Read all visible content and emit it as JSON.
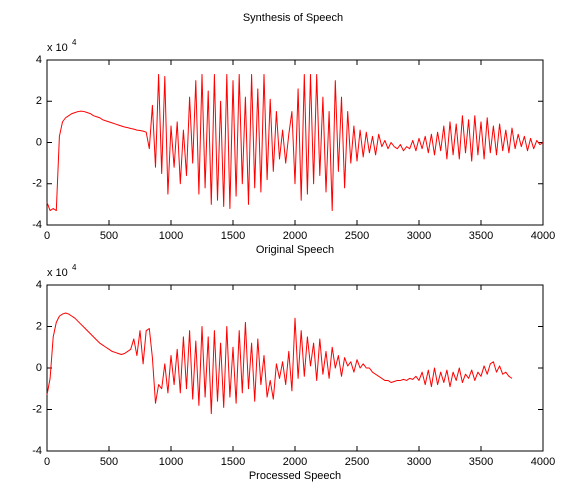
{
  "title": "Synthesis of Speech",
  "chart_data": [
    {
      "type": "line",
      "xlabel": "Original Speech",
      "multiplier_base": "x 10",
      "multiplier_exponent": "4",
      "color": "#ff0000",
      "xlim": [
        0,
        4000
      ],
      "ylim": [
        -4,
        4
      ],
      "xticks": [
        0,
        500,
        1000,
        1500,
        2000,
        2500,
        3000,
        3500,
        4000
      ],
      "yticks": [
        -4,
        -2,
        0,
        2,
        4
      ],
      "x": [
        0,
        25,
        50,
        75,
        100,
        125,
        150,
        175,
        200,
        225,
        250,
        275,
        300,
        325,
        350,
        375,
        400,
        425,
        450,
        475,
        500,
        525,
        550,
        575,
        600,
        625,
        650,
        675,
        700,
        725,
        750,
        775,
        800,
        825,
        850,
        875,
        900,
        925,
        950,
        975,
        1000,
        1025,
        1050,
        1075,
        1100,
        1125,
        1150,
        1175,
        1200,
        1225,
        1250,
        1275,
        1300,
        1325,
        1350,
        1375,
        1400,
        1425,
        1450,
        1475,
        1500,
        1525,
        1550,
        1575,
        1600,
        1625,
        1650,
        1675,
        1700,
        1725,
        1750,
        1775,
        1800,
        1825,
        1850,
        1875,
        1900,
        1925,
        1950,
        1975,
        2000,
        2025,
        2050,
        2075,
        2100,
        2125,
        2150,
        2175,
        2200,
        2225,
        2250,
        2275,
        2300,
        2325,
        2350,
        2375,
        2400,
        2425,
        2450,
        2475,
        2500,
        2525,
        2550,
        2575,
        2600,
        2625,
        2650,
        2675,
        2700,
        2725,
        2750,
        2775,
        2800,
        2825,
        2850,
        2875,
        2900,
        2925,
        2950,
        2975,
        3000,
        3025,
        3050,
        3075,
        3100,
        3125,
        3150,
        3175,
        3200,
        3225,
        3250,
        3275,
        3300,
        3325,
        3350,
        3375,
        3400,
        3425,
        3450,
        3475,
        3500,
        3525,
        3550,
        3575,
        3600,
        3625,
        3650,
        3675,
        3700,
        3725,
        3750,
        3775,
        3800,
        3825,
        3850,
        3875,
        3900,
        3925,
        3950,
        3975,
        4000
      ],
      "values": [
        -2.9,
        -3.3,
        -3.2,
        -3.3,
        0.3,
        1.0,
        1.2,
        1.3,
        1.4,
        1.45,
        1.5,
        1.52,
        1.5,
        1.45,
        1.4,
        1.3,
        1.25,
        1.2,
        1.1,
        1.05,
        1.0,
        0.95,
        0.9,
        0.85,
        0.8,
        0.75,
        0.72,
        0.68,
        0.65,
        0.6,
        0.58,
        0.55,
        0.5,
        -0.3,
        1.8,
        -1.2,
        3.3,
        -1.5,
        3.2,
        -2.5,
        0.8,
        -1.2,
        1.0,
        -2.0,
        0.6,
        -1.6,
        2.2,
        -1.0,
        3.0,
        -2.5,
        3.3,
        -2.2,
        2.5,
        -3.0,
        3.3,
        -2.8,
        2.0,
        -3.1,
        3.3,
        -3.2,
        3.0,
        -2.6,
        3.3,
        -2.0,
        2.2,
        -3.0,
        3.3,
        -2.2,
        2.6,
        -2.4,
        3.3,
        -1.8,
        2.1,
        -1.4,
        1.5,
        -0.8,
        0.6,
        -1.0,
        0.4,
        1.5,
        -2.0,
        2.6,
        -2.8,
        3.3,
        -2.5,
        3.3,
        -2.0,
        3.3,
        -1.6,
        2.2,
        -2.4,
        1.5,
        -3.3,
        3.0,
        -1.4,
        2.2,
        -2.2,
        1.5,
        -1.0,
        0.8,
        -0.9,
        0.6,
        -0.7,
        0.5,
        -0.5,
        0.3,
        -0.6,
        0.4,
        -0.2,
        0.1,
        -0.3,
        0.0,
        -0.2,
        -0.3,
        -0.1,
        -0.4,
        -0.2,
        -0.3,
        0.1,
        -0.4,
        0.2,
        -0.3,
        0.3,
        -0.5,
        0.4,
        -0.6,
        0.5,
        -0.4,
        0.8,
        -0.8,
        1.0,
        -0.6,
        0.9,
        -0.8,
        1.3,
        -0.5,
        1.1,
        -0.9,
        1.3,
        -0.6,
        1.0,
        -0.8,
        1.2,
        -0.5,
        0.8,
        -0.6,
        0.9,
        -0.4,
        0.6,
        -0.5,
        0.7,
        -0.3,
        0.4,
        -0.2,
        0.3,
        -0.4,
        0.2,
        -0.3,
        0.1,
        -0.1,
        0.0
      ]
    },
    {
      "type": "line",
      "xlabel": "Processed Speech",
      "multiplier_base": "x 10",
      "multiplier_exponent": "4",
      "color": "#ff0000",
      "xlim": [
        0,
        4000
      ],
      "ylim": [
        -4,
        4
      ],
      "xticks": [
        0,
        500,
        1000,
        1500,
        2000,
        2500,
        3000,
        3500,
        4000
      ],
      "yticks": [
        -4,
        -2,
        0,
        2,
        4
      ],
      "x": [
        0,
        25,
        50,
        75,
        100,
        125,
        150,
        175,
        200,
        225,
        250,
        275,
        300,
        325,
        350,
        375,
        400,
        425,
        450,
        475,
        500,
        525,
        550,
        575,
        600,
        625,
        650,
        675,
        700,
        725,
        750,
        775,
        800,
        825,
        850,
        875,
        900,
        925,
        950,
        975,
        1000,
        1025,
        1050,
        1075,
        1100,
        1125,
        1150,
        1175,
        1200,
        1225,
        1250,
        1275,
        1300,
        1325,
        1350,
        1375,
        1400,
        1425,
        1450,
        1475,
        1500,
        1525,
        1550,
        1575,
        1600,
        1625,
        1650,
        1675,
        1700,
        1725,
        1750,
        1775,
        1800,
        1825,
        1850,
        1875,
        1900,
        1925,
        1950,
        1975,
        2000,
        2025,
        2050,
        2075,
        2100,
        2125,
        2150,
        2175,
        2200,
        2225,
        2250,
        2275,
        2300,
        2325,
        2350,
        2375,
        2400,
        2425,
        2450,
        2475,
        2500,
        2525,
        2550,
        2575,
        2600,
        2625,
        2650,
        2675,
        2700,
        2725,
        2750,
        2775,
        2800,
        2825,
        2850,
        2875,
        2900,
        2925,
        2950,
        2975,
        3000,
        3025,
        3050,
        3075,
        3100,
        3125,
        3150,
        3175,
        3200,
        3225,
        3250,
        3275,
        3300,
        3325,
        3350,
        3375,
        3400,
        3425,
        3450,
        3475,
        3500,
        3525,
        3550,
        3575,
        3600,
        3625,
        3650,
        3675,
        3700,
        3725,
        3750
      ],
      "values": [
        -1.3,
        -0.5,
        1.5,
        2.2,
        2.5,
        2.6,
        2.65,
        2.6,
        2.5,
        2.4,
        2.25,
        2.1,
        1.95,
        1.8,
        1.65,
        1.5,
        1.35,
        1.2,
        1.1,
        1.0,
        0.9,
        0.8,
        0.75,
        0.7,
        0.65,
        0.7,
        0.8,
        0.9,
        1.4,
        0.6,
        1.8,
        0.2,
        1.8,
        1.9,
        0.5,
        -1.7,
        -0.8,
        -1.0,
        0.2,
        -1.2,
        0.6,
        -0.8,
        0.9,
        -1.2,
        1.5,
        -1.0,
        1.8,
        -1.5,
        1.3,
        -1.8,
        2.0,
        -1.4,
        1.5,
        -2.2,
        1.8,
        -1.6,
        1.2,
        -1.9,
        2.0,
        -1.4,
        1.0,
        -1.7,
        1.8,
        -1.2,
        2.2,
        -1.0,
        1.2,
        -1.6,
        1.4,
        -0.8,
        0.6,
        -1.4,
        -0.6,
        -1.5,
        0.2,
        -0.5,
        0.3,
        -0.8,
        0.8,
        -1.1,
        2.4,
        -0.5,
        1.8,
        -0.4,
        1.5,
        0.1,
        1.2,
        -0.6,
        1.4,
        -0.3,
        0.8,
        -0.5,
        1.0,
        0.0,
        0.6,
        -0.4,
        0.5,
        0.1,
        0.3,
        -0.2,
        0.4,
        0.0,
        0.2,
        0.0,
        0.0,
        -0.2,
        -0.3,
        -0.4,
        -0.5,
        -0.6,
        -0.6,
        -0.7,
        -0.65,
        -0.6,
        -0.6,
        -0.55,
        -0.6,
        -0.5,
        -0.55,
        -0.4,
        -0.6,
        -0.2,
        -0.8,
        -0.1,
        -0.9,
        0.0,
        -0.8,
        -0.2,
        -0.7,
        -0.1,
        -0.9,
        -0.2,
        -0.6,
        0.0,
        -0.7,
        -0.3,
        -0.5,
        -0.1,
        -0.6,
        -0.2,
        -0.4,
        0.1,
        -0.3,
        0.2,
        0.3,
        -0.2,
        0.1,
        -0.3,
        -0.2,
        -0.4,
        -0.5
      ]
    }
  ]
}
